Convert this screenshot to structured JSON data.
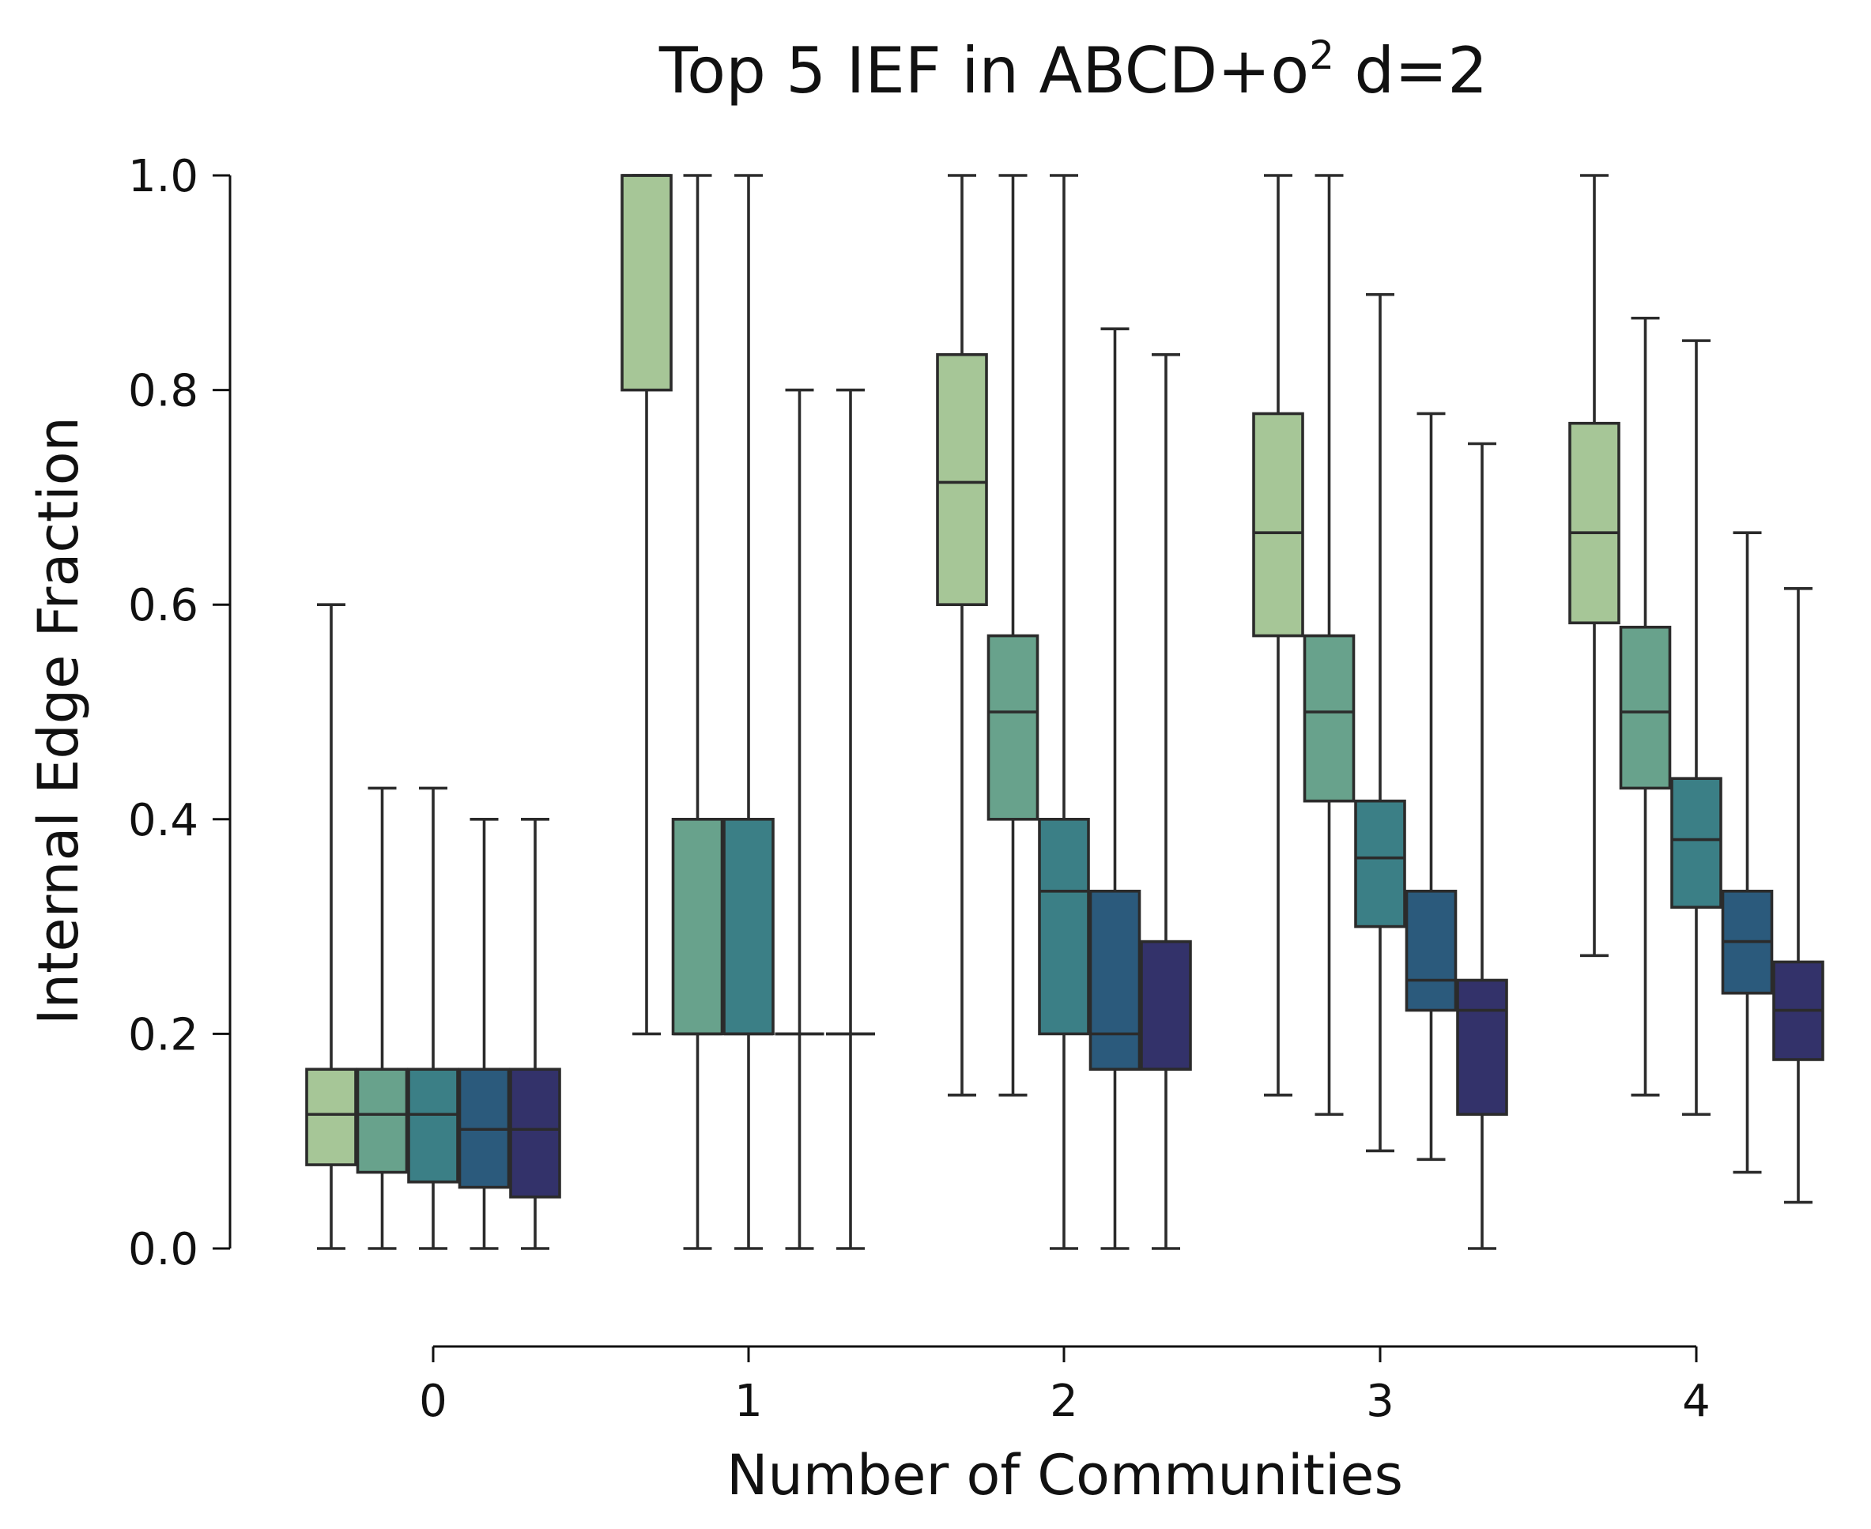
{
  "chart_data": {
    "type": "box",
    "title": "Top 5 IEF in ABCD+o",
    "title_superscript": "2",
    "title_suffix": " d=2",
    "xlabel": "Number of Communities",
    "ylabel": "Internal Edge Fraction",
    "ylim": [
      0.0,
      1.0
    ],
    "y_ticks": [
      0.0,
      0.2,
      0.4,
      0.6,
      0.8,
      1.0
    ],
    "y_tick_labels": [
      "0.0",
      "0.2",
      "0.4",
      "0.6",
      "0.8",
      "1.0"
    ],
    "categories": [
      "0",
      "1",
      "2",
      "3",
      "4"
    ],
    "legend": "none",
    "grid": false,
    "hue_colors": [
      "#a6c697",
      "#68a28c",
      "#3b7f86",
      "#2b5a7c",
      "#33326a"
    ],
    "groups": [
      {
        "category": "0",
        "boxes": [
          {
            "q1": 0.078,
            "median": 0.125,
            "q3": 0.167,
            "whislo": 0.0,
            "whishi": 0.6
          },
          {
            "q1": 0.071,
            "median": 0.125,
            "q3": 0.167,
            "whislo": 0.0,
            "whishi": 0.429
          },
          {
            "q1": 0.062,
            "median": 0.125,
            "q3": 0.167,
            "whislo": 0.0,
            "whishi": 0.429
          },
          {
            "q1": 0.057,
            "median": 0.111,
            "q3": 0.167,
            "whislo": 0.0,
            "whishi": 0.4
          },
          {
            "q1": 0.048,
            "median": 0.111,
            "q3": 0.167,
            "whislo": 0.0,
            "whishi": 0.4
          }
        ]
      },
      {
        "category": "1",
        "boxes": [
          {
            "q1": 0.8,
            "median": 1.0,
            "q3": 1.0,
            "whislo": 0.2,
            "whishi": 1.0
          },
          {
            "q1": 0.2,
            "median": 0.2,
            "q3": 0.4,
            "whislo": 0.0,
            "whishi": 1.0
          },
          {
            "q1": 0.2,
            "median": 0.2,
            "q3": 0.4,
            "whislo": 0.0,
            "whishi": 1.0
          },
          {
            "q1": 0.2,
            "median": 0.2,
            "q3": 0.2,
            "whislo": 0.0,
            "whishi": 0.8
          },
          {
            "q1": 0.2,
            "median": 0.2,
            "q3": 0.2,
            "whislo": 0.0,
            "whishi": 0.8
          }
        ]
      },
      {
        "category": "2",
        "boxes": [
          {
            "q1": 0.6,
            "median": 0.714,
            "q3": 0.833,
            "whislo": 0.143,
            "whishi": 1.0
          },
          {
            "q1": 0.4,
            "median": 0.5,
            "q3": 0.571,
            "whislo": 0.143,
            "whishi": 1.0
          },
          {
            "q1": 0.2,
            "median": 0.333,
            "q3": 0.4,
            "whislo": 0.0,
            "whishi": 1.0
          },
          {
            "q1": 0.167,
            "median": 0.2,
            "q3": 0.333,
            "whislo": 0.0,
            "whishi": 0.857
          },
          {
            "q1": 0.167,
            "median": 0.167,
            "q3": 0.286,
            "whislo": 0.0,
            "whishi": 0.833
          }
        ]
      },
      {
        "category": "3",
        "boxes": [
          {
            "q1": 0.571,
            "median": 0.667,
            "q3": 0.778,
            "whislo": 0.143,
            "whishi": 1.0
          },
          {
            "q1": 0.417,
            "median": 0.5,
            "q3": 0.571,
            "whislo": 0.125,
            "whishi": 1.0
          },
          {
            "q1": 0.3,
            "median": 0.364,
            "q3": 0.417,
            "whislo": 0.091,
            "whishi": 0.889
          },
          {
            "q1": 0.222,
            "median": 0.25,
            "q3": 0.333,
            "whislo": 0.083,
            "whishi": 0.778
          },
          {
            "q1": 0.125,
            "median": 0.222,
            "q3": 0.25,
            "whislo": 0.0,
            "whishi": 0.75
          }
        ]
      },
      {
        "category": "4",
        "boxes": [
          {
            "q1": 0.583,
            "median": 0.667,
            "q3": 0.769,
            "whislo": 0.273,
            "whishi": 1.0
          },
          {
            "q1": 0.429,
            "median": 0.5,
            "q3": 0.579,
            "whislo": 0.143,
            "whishi": 0.867
          },
          {
            "q1": 0.318,
            "median": 0.381,
            "q3": 0.438,
            "whislo": 0.125,
            "whishi": 0.846
          },
          {
            "q1": 0.238,
            "median": 0.286,
            "q3": 0.333,
            "whislo": 0.071,
            "whishi": 0.667
          },
          {
            "q1": 0.176,
            "median": 0.222,
            "q3": 0.267,
            "whislo": 0.043,
            "whishi": 0.615
          }
        ]
      }
    ]
  }
}
